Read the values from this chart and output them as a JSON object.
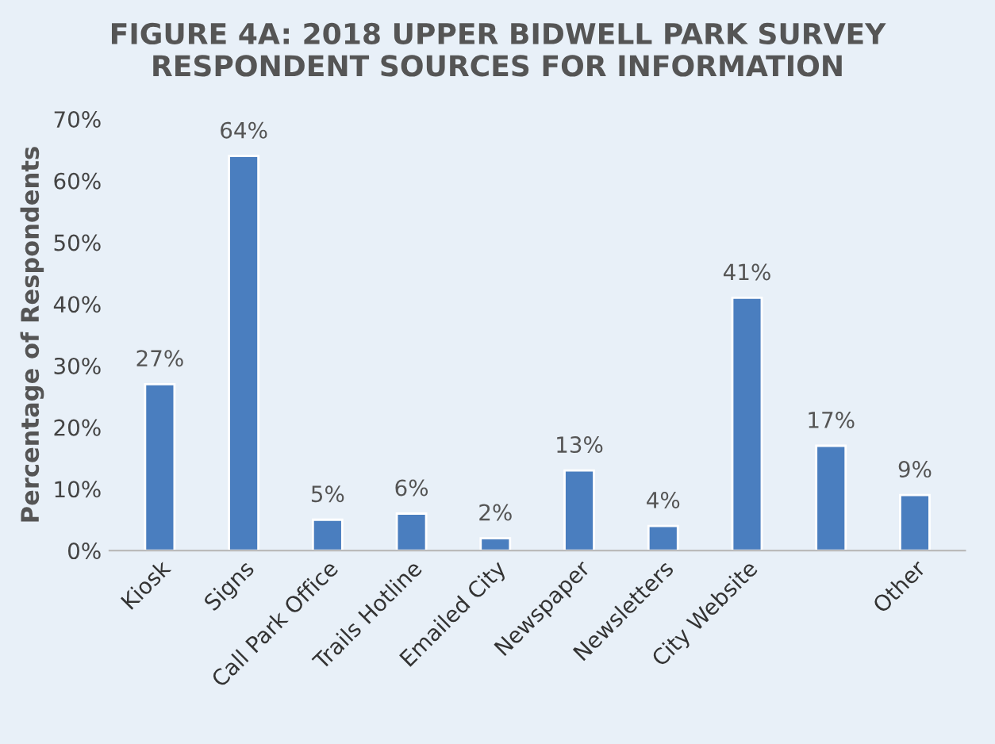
{
  "chart_data": {
    "type": "bar",
    "title": "FIGURE 4A: 2018 UPPER BIDWELL PARK SURVEY\nRESPONDENT SOURCES FOR INFORMATION",
    "ylabel": "Percentage of Respondents",
    "categories": [
      "Kiosk",
      "Signs",
      "Call Park Office",
      "Trails Hotline",
      "Emailed City",
      "Newspaper",
      "Newsletters",
      "City Website",
      null,
      "Other"
    ],
    "values": [
      27,
      64,
      5,
      6,
      2,
      13,
      4,
      41,
      17,
      9
    ],
    "value_labels": [
      "27%",
      "64%",
      "5%",
      "6%",
      "2%",
      "13%",
      "4%",
      "41%",
      "17%",
      "9%"
    ],
    "color": "#4a7ebf",
    "ylim": [
      0,
      70
    ],
    "yticks": [
      {
        "value": 0,
        "label": "0%"
      },
      {
        "value": 10,
        "label": "10%"
      },
      {
        "value": 20,
        "label": "20%"
      },
      {
        "value": 30,
        "label": "30%"
      },
      {
        "value": 40,
        "label": "40%"
      },
      {
        "value": 50,
        "label": "50%"
      },
      {
        "value": 60,
        "label": "60%"
      },
      {
        "value": 70,
        "label": "70%"
      }
    ],
    "grid": false,
    "legend": false
  }
}
